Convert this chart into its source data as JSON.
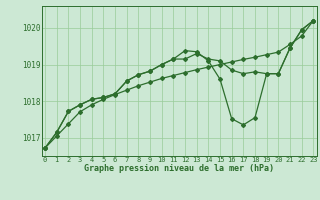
{
  "xlabel": "Graphe pression niveau de la mer (hPa)",
  "ylim": [
    1016.5,
    1020.6
  ],
  "xlim": [
    -0.3,
    23.3
  ],
  "yticks": [
    1017,
    1018,
    1019,
    1020
  ],
  "xticks": [
    0,
    1,
    2,
    3,
    4,
    5,
    6,
    7,
    8,
    9,
    10,
    11,
    12,
    13,
    14,
    15,
    16,
    17,
    18,
    19,
    20,
    21,
    22,
    23
  ],
  "bg_color": "#cce8d4",
  "grid_color": "#99cc99",
  "line_color": "#2d6e2d",
  "line_straight": [
    1016.72,
    1017.05,
    1017.38,
    1017.71,
    1017.9,
    1018.05,
    1018.18,
    1018.3,
    1018.42,
    1018.52,
    1018.62,
    1018.7,
    1018.78,
    1018.86,
    1018.93,
    1019.0,
    1019.07,
    1019.14,
    1019.2,
    1019.27,
    1019.34,
    1019.55,
    1019.78,
    1020.2
  ],
  "line_mid": [
    1016.72,
    1017.15,
    1017.72,
    1017.9,
    1018.05,
    1018.1,
    1018.2,
    1018.55,
    1018.72,
    1018.82,
    1019.0,
    1019.15,
    1019.15,
    1019.3,
    1019.15,
    1019.1,
    1018.85,
    1018.75,
    1018.8,
    1018.75,
    1018.75,
    1019.45,
    1019.95,
    1020.2
  ],
  "line_dip": [
    1016.72,
    1017.15,
    1017.72,
    1017.9,
    1018.05,
    1018.1,
    1018.2,
    1018.55,
    1018.72,
    1018.82,
    1019.0,
    1019.15,
    1019.38,
    1019.35,
    1019.1,
    1018.6,
    1017.52,
    1017.35,
    1017.55,
    1018.75,
    1018.75,
    1019.45,
    1019.95,
    1020.2
  ],
  "marker": "D",
  "markersize": 2.0,
  "linewidth": 0.9
}
